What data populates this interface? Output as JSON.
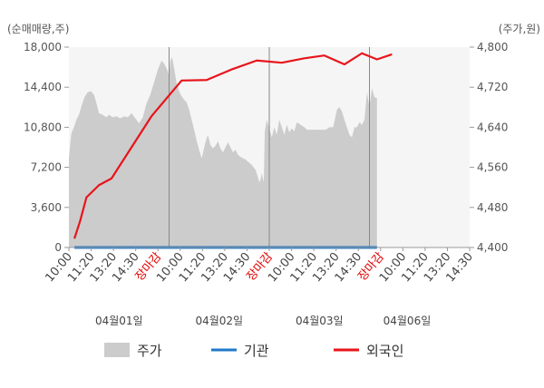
{
  "chart_data": {
    "type": "area+line",
    "left_axis": {
      "unit_label": "(순매매량,주)",
      "ylim": [
        0,
        18000
      ],
      "ticks": [
        0,
        3600,
        7200,
        10800,
        14400,
        18000
      ],
      "tick_labels": [
        "0",
        "3,600",
        "7,200",
        "10,800",
        "14,400",
        "18,000"
      ]
    },
    "right_axis": {
      "unit_label": "(주가,원)",
      "ylim": [
        4400,
        4800
      ],
      "ticks": [
        4400,
        4480,
        4560,
        4640,
        4720,
        4800
      ],
      "tick_labels": [
        "4,400",
        "4,480",
        "4,560",
        "4,640",
        "4,720",
        "4,800"
      ]
    },
    "x_axis": {
      "slots": 16,
      "tick_labels": [
        {
          "text": "10:00",
          "color": "#444444"
        },
        {
          "text": "11:20",
          "color": "#444444"
        },
        {
          "text": "13:20",
          "color": "#444444"
        },
        {
          "text": "14:30",
          "color": "#444444"
        },
        {
          "text": "장마감",
          "color": "#e00000"
        },
        {
          "text": "10:00",
          "color": "#444444"
        },
        {
          "text": "11:20",
          "color": "#444444"
        },
        {
          "text": "13:20",
          "color": "#444444"
        },
        {
          "text": "14:30",
          "color": "#444444"
        },
        {
          "text": "장마감",
          "color": "#e00000"
        },
        {
          "text": "10:00",
          "color": "#444444"
        },
        {
          "text": "11:20",
          "color": "#444444"
        },
        {
          "text": "13:20",
          "color": "#444444"
        },
        {
          "text": "14:30",
          "color": "#444444"
        },
        {
          "text": "장마감",
          "color": "#e00000"
        },
        {
          "text": "10:00",
          "color": "#444444"
        },
        {
          "text": "11:20",
          "color": "#444444"
        },
        {
          "text": "13:20",
          "color": "#444444"
        },
        {
          "text": "14:30",
          "color": "#444444"
        }
      ],
      "day_separators": [
        4,
        8,
        12
      ],
      "date_labels": [
        {
          "text": "04월01일",
          "slot": 2
        },
        {
          "text": "04월02일",
          "slot": 6
        },
        {
          "text": "04월03일",
          "slot": 10
        },
        {
          "text": "04월06일",
          "slot": 13.5
        }
      ]
    },
    "series": [
      {
        "name": "주가",
        "kind": "area",
        "axis": "right",
        "color": "#cccccc",
        "points": [
          [
            0,
            4578
          ],
          [
            0.06,
            4610
          ],
          [
            0.1,
            4628
          ],
          [
            0.2,
            4640
          ],
          [
            0.3,
            4655
          ],
          [
            0.4,
            4665
          ],
          [
            0.5,
            4682
          ],
          [
            0.62,
            4700
          ],
          [
            0.75,
            4710
          ],
          [
            0.88,
            4712
          ],
          [
            1.0,
            4705
          ],
          [
            1.1,
            4688
          ],
          [
            1.2,
            4668
          ],
          [
            1.35,
            4665
          ],
          [
            1.5,
            4660
          ],
          [
            1.6,
            4665
          ],
          [
            1.75,
            4660
          ],
          [
            1.9,
            4662
          ],
          [
            2.05,
            4658
          ],
          [
            2.2,
            4662
          ],
          [
            2.35,
            4660
          ],
          [
            2.5,
            4668
          ],
          [
            2.65,
            4658
          ],
          [
            2.8,
            4648
          ],
          [
            2.95,
            4660
          ],
          [
            3.1,
            4688
          ],
          [
            3.25,
            4705
          ],
          [
            3.4,
            4730
          ],
          [
            3.55,
            4755
          ],
          [
            3.7,
            4773
          ],
          [
            3.8,
            4767
          ],
          [
            3.9,
            4758
          ],
          [
            4.0,
            4743
          ],
          [
            4.05,
            4773
          ],
          [
            4.12,
            4780
          ],
          [
            4.2,
            4758
          ],
          [
            4.3,
            4728
          ],
          [
            4.4,
            4712
          ],
          [
            4.5,
            4702
          ],
          [
            4.6,
            4695
          ],
          [
            4.7,
            4690
          ],
          [
            4.8,
            4675
          ],
          [
            4.9,
            4655
          ],
          [
            5.0,
            4635
          ],
          [
            5.1,
            4613
          ],
          [
            5.2,
            4595
          ],
          [
            5.3,
            4578
          ],
          [
            5.35,
            4588
          ],
          [
            5.45,
            4610
          ],
          [
            5.55,
            4625
          ],
          [
            5.65,
            4605
          ],
          [
            5.75,
            4598
          ],
          [
            5.85,
            4603
          ],
          [
            5.95,
            4612
          ],
          [
            6.05,
            4598
          ],
          [
            6.15,
            4590
          ],
          [
            6.25,
            4600
          ],
          [
            6.35,
            4610
          ],
          [
            6.45,
            4600
          ],
          [
            6.55,
            4590
          ],
          [
            6.65,
            4595
          ],
          [
            6.75,
            4585
          ],
          [
            6.85,
            4581
          ],
          [
            6.95,
            4578
          ],
          [
            7.05,
            4576
          ],
          [
            7.15,
            4571
          ],
          [
            7.3,
            4565
          ],
          [
            7.45,
            4555
          ],
          [
            7.55,
            4540
          ],
          [
            7.6,
            4530
          ],
          [
            7.65,
            4535
          ],
          [
            7.7,
            4548
          ],
          [
            7.78,
            4530
          ],
          [
            7.82,
            4632
          ],
          [
            7.9,
            4655
          ],
          [
            8.0,
            4638
          ],
          [
            8.1,
            4620
          ],
          [
            8.2,
            4640
          ],
          [
            8.3,
            4625
          ],
          [
            8.4,
            4655
          ],
          [
            8.5,
            4640
          ],
          [
            8.6,
            4625
          ],
          [
            8.7,
            4645
          ],
          [
            8.8,
            4630
          ],
          [
            8.9,
            4638
          ],
          [
            9.0,
            4632
          ],
          [
            9.1,
            4650
          ],
          [
            9.25,
            4645
          ],
          [
            9.4,
            4640
          ],
          [
            9.5,
            4635
          ],
          [
            9.65,
            4635
          ],
          [
            9.8,
            4635
          ],
          [
            9.95,
            4635
          ],
          [
            10.1,
            4635
          ],
          [
            10.25,
            4635
          ],
          [
            10.4,
            4640
          ],
          [
            10.55,
            4640
          ],
          [
            10.7,
            4675
          ],
          [
            10.8,
            4680
          ],
          [
            10.9,
            4672
          ],
          [
            11.0,
            4655
          ],
          [
            11.1,
            4640
          ],
          [
            11.2,
            4625
          ],
          [
            11.3,
            4620
          ],
          [
            11.4,
            4640
          ],
          [
            11.5,
            4640
          ],
          [
            11.6,
            4650
          ],
          [
            11.7,
            4645
          ],
          [
            11.8,
            4655
          ],
          [
            11.9,
            4710
          ],
          [
            12.0,
            4680
          ],
          [
            12.1,
            4718
          ],
          [
            12.2,
            4700
          ],
          [
            12.3,
            4698
          ]
        ]
      },
      {
        "name": "기관",
        "kind": "line",
        "axis": "left",
        "color": "#1f78c8",
        "points": [
          [
            0.22,
            0
          ],
          [
            12.3,
            0
          ]
        ]
      },
      {
        "name": "외국인",
        "kind": "line",
        "axis": "left",
        "color": "#e8141b",
        "points": [
          [
            0.22,
            800
          ],
          [
            0.45,
            2400
          ],
          [
            0.7,
            4500
          ],
          [
            1.2,
            5600
          ],
          [
            1.7,
            6200
          ],
          [
            3.3,
            11800
          ],
          [
            4.5,
            15000
          ],
          [
            5.5,
            15050
          ],
          [
            6.5,
            16000
          ],
          [
            7.5,
            16800
          ],
          [
            8.5,
            16600
          ],
          [
            9.4,
            17000
          ],
          [
            10.2,
            17250
          ],
          [
            11.0,
            16450
          ],
          [
            11.7,
            17450
          ],
          [
            12.3,
            16900
          ],
          [
            12.9,
            17350
          ]
        ]
      }
    ],
    "legend": {
      "position": "bottom",
      "items": [
        {
          "name": "주가",
          "symbol": "box",
          "color": "#cccccc"
        },
        {
          "name": "기관",
          "symbol": "line",
          "color": "#1f78c8"
        },
        {
          "name": "외국인",
          "symbol": "line",
          "color": "#e8141b"
        }
      ]
    },
    "grid": {
      "vertical_separators": true,
      "horizontal": false
    },
    "colors": {
      "plot_background": "#f5f5f5",
      "separator": "#888888",
      "axis_text": "#555555"
    }
  }
}
